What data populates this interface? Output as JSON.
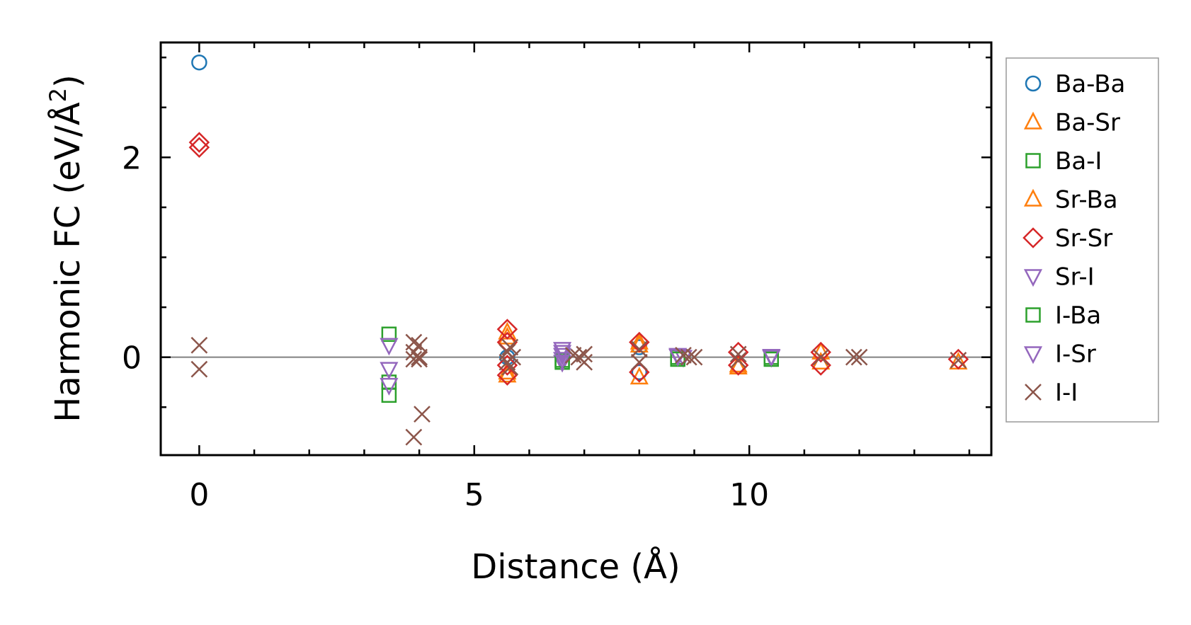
{
  "chart_data": {
    "type": "scatter",
    "xlabel": "Distance (Å)",
    "ylabel": "Harmonic FC (eV/Å",
    "ylabel_sup": "2",
    "ylabel_close": ")",
    "xlim": [
      -0.7,
      14.4
    ],
    "ylim": [
      -0.98,
      3.15
    ],
    "xticks": [
      0,
      5,
      10
    ],
    "xtick_labels": [
      "0",
      "5",
      "10"
    ],
    "yticks": [
      0,
      2
    ],
    "ytick_labels": [
      "0",
      "2"
    ],
    "zero_line": true,
    "grid": false,
    "legend_position": "outside-right",
    "series": [
      {
        "name": "Ba-Ba",
        "marker": "circle",
        "color": "#1f77b4",
        "points": [
          [
            0.0,
            2.95
          ],
          [
            8.0,
            -0.15
          ],
          [
            8.0,
            0.1
          ],
          [
            5.6,
            0.0
          ]
        ]
      },
      {
        "name": "Ba-Sr",
        "marker": "triangle-up",
        "color": "#ff7f0e",
        "points": [
          [
            5.6,
            0.25
          ],
          [
            5.6,
            -0.18
          ],
          [
            8.0,
            -0.2
          ],
          [
            8.0,
            0.12
          ],
          [
            9.8,
            -0.1
          ],
          [
            11.3,
            -0.05
          ],
          [
            13.8,
            -0.05
          ]
        ]
      },
      {
        "name": "Ba-I",
        "marker": "square",
        "color": "#2ca02c",
        "points": [
          [
            3.45,
            0.23
          ],
          [
            3.45,
            -0.38
          ],
          [
            3.45,
            -0.25
          ],
          [
            6.6,
            -0.05
          ],
          [
            8.7,
            0.0
          ],
          [
            10.4,
            0.0
          ]
        ]
      },
      {
        "name": "Sr-Ba",
        "marker": "triangle-up",
        "color": "#ff7f0e",
        "points": [
          [
            5.6,
            0.2
          ],
          [
            5.6,
            -0.15
          ],
          [
            8.0,
            0.15
          ],
          [
            9.8,
            -0.08
          ],
          [
            11.3,
            0.05
          ]
        ]
      },
      {
        "name": "Sr-Sr",
        "marker": "diamond",
        "color": "#d62728",
        "points": [
          [
            0.0,
            2.15
          ],
          [
            0.0,
            2.1
          ],
          [
            5.6,
            0.28
          ],
          [
            5.6,
            0.15
          ],
          [
            5.6,
            -0.18
          ],
          [
            5.6,
            -0.08
          ],
          [
            8.0,
            0.15
          ],
          [
            8.0,
            -0.15
          ],
          [
            9.8,
            0.05
          ],
          [
            9.8,
            -0.08
          ],
          [
            11.3,
            0.05
          ],
          [
            11.3,
            -0.08
          ],
          [
            13.8,
            -0.02
          ]
        ]
      },
      {
        "name": "Sr-I",
        "marker": "triangle-down",
        "color": "#9467bd",
        "points": [
          [
            3.45,
            0.12
          ],
          [
            3.45,
            -0.12
          ],
          [
            3.45,
            -0.28
          ],
          [
            6.6,
            0.08
          ],
          [
            6.6,
            0.02
          ],
          [
            6.6,
            -0.05
          ],
          [
            8.7,
            0.02
          ],
          [
            8.8,
            0.0
          ],
          [
            10.4,
            0.0
          ]
        ]
      },
      {
        "name": "I-Ba",
        "marker": "square",
        "color": "#2ca02c",
        "points": [
          [
            6.6,
            -0.03
          ],
          [
            8.7,
            -0.02
          ],
          [
            10.4,
            -0.02
          ]
        ]
      },
      {
        "name": "I-Sr",
        "marker": "triangle-down",
        "color": "#9467bd",
        "points": [
          [
            6.6,
            0.05
          ],
          [
            6.6,
            -0.02
          ],
          [
            8.7,
            0.01
          ],
          [
            10.4,
            0.01
          ]
        ]
      },
      {
        "name": "I-I",
        "marker": "x",
        "color": "#8c564b",
        "points": [
          [
            0.0,
            0.12
          ],
          [
            0.0,
            -0.12
          ],
          [
            3.9,
            0.15
          ],
          [
            3.9,
            0.05
          ],
          [
            3.9,
            -0.02
          ],
          [
            4.0,
            0.12
          ],
          [
            4.0,
            0.0
          ],
          [
            4.0,
            -0.02
          ],
          [
            3.9,
            -0.8
          ],
          [
            4.05,
            -0.57
          ],
          [
            5.6,
            0.05
          ],
          [
            5.6,
            -0.05
          ],
          [
            5.7,
            0.0
          ],
          [
            5.65,
            0.1
          ],
          [
            5.65,
            -0.1
          ],
          [
            6.8,
            0.02
          ],
          [
            6.9,
            0.0
          ],
          [
            7.0,
            0.03
          ],
          [
            7.0,
            -0.05
          ],
          [
            8.0,
            0.08
          ],
          [
            8.0,
            -0.05
          ],
          [
            8.8,
            0.02
          ],
          [
            8.9,
            0.0
          ],
          [
            9.0,
            0.0
          ],
          [
            9.8,
            0.03
          ],
          [
            9.8,
            -0.03
          ],
          [
            11.3,
            0.0
          ],
          [
            11.9,
            0.0
          ],
          [
            12.0,
            0.0
          ],
          [
            13.8,
            -0.03
          ]
        ]
      }
    ]
  }
}
